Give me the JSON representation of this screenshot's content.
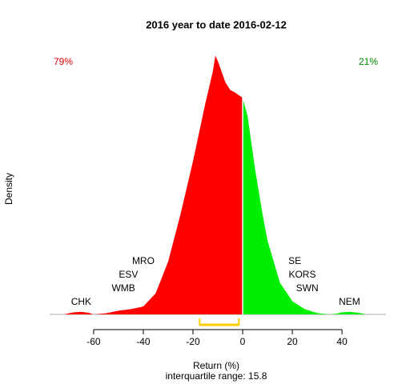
{
  "chart_data": {
    "type": "density",
    "title": "2016  year to date 2016-02-12",
    "xlabel": "Return (%)",
    "ylabel": "Density",
    "subtitle": "interquartile range: 15.8",
    "left_share": "79%",
    "right_share": "21%",
    "x": [
      -72,
      -68,
      -65,
      -62,
      -60,
      -55,
      -50,
      -45,
      -40,
      -35,
      -30,
      -25,
      -20,
      -15,
      -12,
      -11,
      -10,
      -7,
      -5,
      -3,
      0,
      2,
      5,
      8,
      10,
      15,
      20,
      25,
      30,
      35,
      38,
      40,
      43,
      46,
      50
    ],
    "values": [
      0,
      0.008,
      0.01,
      0.006,
      0,
      0.004,
      0.014,
      0.02,
      0.03,
      0.08,
      0.2,
      0.38,
      0.58,
      0.8,
      0.92,
      0.98,
      0.96,
      0.88,
      0.85,
      0.84,
      0.82,
      0.75,
      0.55,
      0.38,
      0.28,
      0.12,
      0.05,
      0.02,
      0.005,
      0,
      0.003,
      0.008,
      0.01,
      0.007,
      0
    ],
    "negative_color": "#ff0000",
    "positive_color": "#00ee00",
    "xlim": [
      -77.7,
      57.7
    ],
    "ylim": [
      0,
      1
    ],
    "xticks": [
      -60,
      -40,
      -20,
      0,
      20,
      40
    ],
    "quartiles": [
      -17.3,
      -1.5
    ],
    "annotations": [
      {
        "text": "CHK",
        "x": -65
      },
      {
        "text": "WMB",
        "x": -48
      },
      {
        "text": "ESV",
        "x": -46
      },
      {
        "text": "MRO",
        "x": -40
      },
      {
        "text": "SE",
        "x": 21
      },
      {
        "text": "KORS",
        "x": 24
      },
      {
        "text": "SWN",
        "x": 26
      },
      {
        "text": "NEM",
        "x": 43
      }
    ]
  }
}
